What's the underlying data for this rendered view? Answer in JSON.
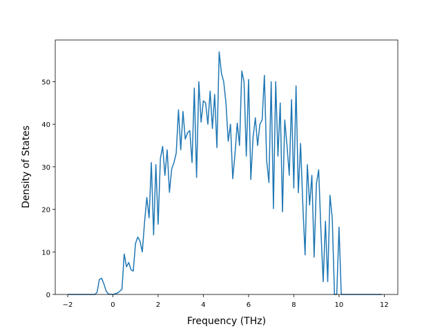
{
  "chart_data": {
    "type": "line",
    "xlabel": "Frequency (THz)",
    "ylabel": "Density of States",
    "x": [
      -2,
      -1,
      -0.8,
      -0.7,
      -0.6,
      -0.5,
      -0.4,
      -0.3,
      -0.2,
      0,
      0.2,
      0.4,
      0.5,
      0.6,
      0.7,
      0.8,
      0.9,
      1.0,
      1.1,
      1.2,
      1.3,
      1.4,
      1.5,
      1.6,
      1.7,
      1.8,
      1.9,
      2.0,
      2.1,
      2.2,
      2.3,
      2.4,
      2.5,
      2.6,
      2.7,
      2.8,
      2.9,
      3.0,
      3.1,
      3.2,
      3.3,
      3.4,
      3.5,
      3.6,
      3.7,
      3.8,
      3.9,
      4.0,
      4.1,
      4.2,
      4.3,
      4.4,
      4.5,
      4.6,
      4.7,
      4.8,
      4.9,
      5.0,
      5.1,
      5.2,
      5.3,
      5.4,
      5.5,
      5.6,
      5.7,
      5.8,
      5.9,
      6.0,
      6.1,
      6.2,
      6.3,
      6.4,
      6.5,
      6.6,
      6.7,
      6.8,
      6.9,
      7.0,
      7.1,
      7.2,
      7.3,
      7.4,
      7.5,
      7.6,
      7.7,
      7.8,
      7.9,
      8.0,
      8.1,
      8.2,
      8.3,
      8.4,
      8.5,
      8.6,
      8.7,
      8.8,
      8.9,
      9.0,
      9.1,
      9.2,
      9.3,
      9.4,
      9.5,
      9.6,
      9.7,
      9.8,
      9.9,
      10.0,
      10.1,
      10.5,
      11,
      11.9
    ],
    "series": [
      {
        "color": "#1f77b4",
        "values": [
          0,
          0,
          0,
          0.5,
          3.5,
          3.8,
          2.5,
          0.8,
          0.1,
          0,
          0.3,
          1.2,
          9.5,
          6.5,
          7.5,
          5.8,
          5.5,
          12,
          13.5,
          12.5,
          10,
          17,
          22.8,
          18,
          31,
          14,
          30.5,
          16.5,
          32,
          34.8,
          28,
          34,
          24,
          29.5,
          31,
          33.2,
          43.4,
          34,
          43,
          36.5,
          38,
          38.5,
          31,
          48.5,
          27.5,
          50,
          40.5,
          45.5,
          45,
          40,
          47.8,
          39,
          47,
          34.5,
          57,
          52,
          50,
          45,
          36,
          40,
          27.2,
          33,
          40.3,
          35,
          52.5,
          50,
          32.5,
          50.5,
          27,
          37,
          41.5,
          35,
          40,
          41,
          51.5,
          31.5,
          26.3,
          50,
          20.2,
          50,
          32.5,
          45,
          19.4,
          41,
          35,
          28,
          45.8,
          25,
          49,
          23.9,
          35.5,
          21,
          9.3,
          30.5,
          21,
          28,
          8.8,
          26,
          29.3,
          15,
          3,
          17.2,
          3,
          23.3,
          18,
          0,
          0,
          15.8,
          0,
          0,
          0,
          0
        ]
      }
    ],
    "xlim": [
      -2.55,
      12.6
    ],
    "ylim": [
      0,
      59.8
    ],
    "xticks": [
      {
        "value": -2,
        "label": "−2"
      },
      0,
      2,
      4,
      6,
      8,
      10,
      12
    ],
    "yticks": [
      0,
      10,
      20,
      30,
      40,
      50
    ]
  }
}
